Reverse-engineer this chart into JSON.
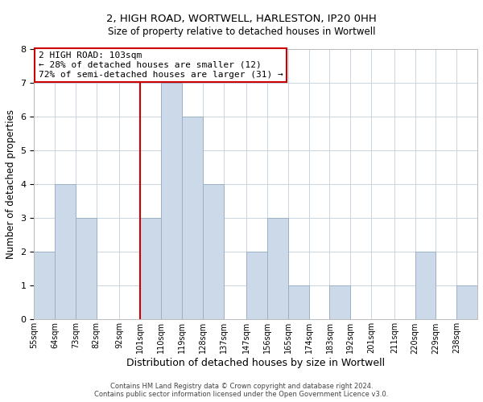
{
  "title1": "2, HIGH ROAD, WORTWELL, HARLESTON, IP20 0HH",
  "title2": "Size of property relative to detached houses in Wortwell",
  "xlabel": "Distribution of detached houses by size in Wortwell",
  "ylabel": "Number of detached properties",
  "bin_labels": [
    "55sqm",
    "64sqm",
    "73sqm",
    "82sqm",
    "92sqm",
    "101sqm",
    "110sqm",
    "119sqm",
    "128sqm",
    "137sqm",
    "147sqm",
    "156sqm",
    "165sqm",
    "174sqm",
    "183sqm",
    "192sqm",
    "201sqm",
    "211sqm",
    "220sqm",
    "229sqm",
    "238sqm"
  ],
  "bin_left_edges": [
    55,
    64,
    73,
    82,
    92,
    101,
    110,
    119,
    128,
    137,
    147,
    156,
    165,
    174,
    183,
    192,
    201,
    211,
    220,
    229,
    238
  ],
  "bin_widths": [
    9,
    9,
    9,
    9,
    9,
    9,
    9,
    9,
    9,
    9,
    10,
    9,
    9,
    9,
    9,
    9,
    10,
    9,
    9,
    9,
    9
  ],
  "bar_heights": [
    2,
    4,
    3,
    0,
    0,
    3,
    7,
    6,
    4,
    0,
    2,
    3,
    1,
    0,
    1,
    0,
    0,
    0,
    2,
    0,
    1
  ],
  "bar_color": "#ccd9e8",
  "bar_edgecolor": "#9ab0c8",
  "marker_x": 101,
  "marker_color": "#cc0000",
  "ylim": [
    0,
    8
  ],
  "yticks": [
    0,
    1,
    2,
    3,
    4,
    5,
    6,
    7,
    8
  ],
  "xlim_left": 55,
  "xlim_right": 247,
  "annotation_text": "2 HIGH ROAD: 103sqm\n← 28% of detached houses are smaller (12)\n72% of semi-detached houses are larger (31) →",
  "annotation_box_color": "#cc0000",
  "footer1": "Contains HM Land Registry data © Crown copyright and database right 2024.",
  "footer2": "Contains public sector information licensed under the Open Government Licence v3.0.",
  "background_color": "#ffffff",
  "grid_color": "#c8d4e0"
}
